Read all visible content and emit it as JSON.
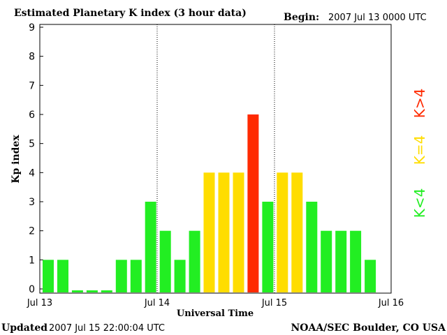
{
  "header": {
    "title": "Estimated Planetary K index (3 hour data)",
    "begin_label": "Begin:",
    "begin_value": "2007 Jul 13 0000 UTC"
  },
  "footer": {
    "updated_label": "Updated",
    "updated_value": "2007 Jul 15 22:00:04 UTC",
    "credit": "NOAA/SEC Boulder, CO USA"
  },
  "colors": {
    "low": "#22ee22",
    "mid": "#ffdd00",
    "high": "#ff2a00",
    "axis": "#000000",
    "background": "#ffffff"
  },
  "legend": {
    "below": "K<4",
    "equal": "K=4",
    "above": "K>4"
  },
  "chart_data": {
    "type": "bar",
    "title": "Estimated Planetary K index (3 hour data)",
    "xlabel": "Universal Time",
    "ylabel": "Kp index",
    "ylim": [
      0,
      9
    ],
    "yticks": [
      "0",
      "1",
      "2",
      "3",
      "4",
      "5",
      "6",
      "7",
      "8",
      "9"
    ],
    "xticks": [
      "Jul 13",
      "Jul 14",
      "Jul 15",
      "Jul 16"
    ],
    "values": [
      1,
      1,
      0,
      0,
      0,
      1,
      1,
      3,
      2,
      1,
      2,
      4,
      4,
      4,
      6,
      3,
      4,
      4,
      3,
      2,
      2,
      2,
      1
    ],
    "grid": false,
    "day_separators": true,
    "legend_position": "right"
  }
}
